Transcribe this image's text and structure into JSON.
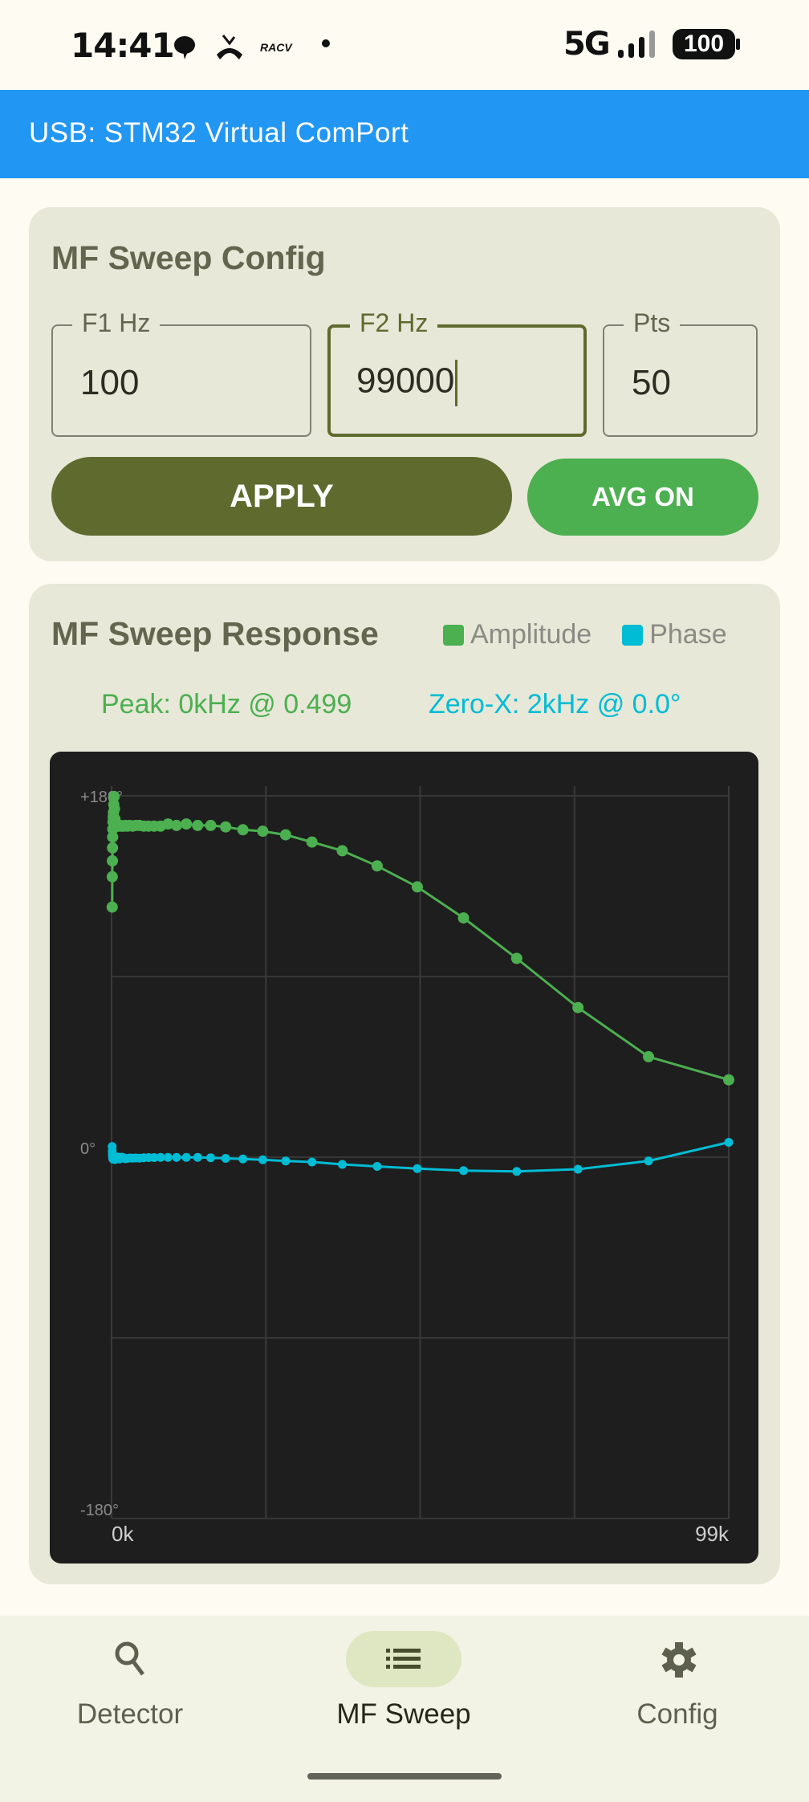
{
  "status_bar": {
    "time": "14:41",
    "network": "5G",
    "battery": "100",
    "notification_icons": [
      "chat-bubble-icon",
      "missed-call-icon",
      "racv-icon",
      "dot-icon"
    ]
  },
  "app_bar": {
    "title": "USB: STM32 Virtual ComPort",
    "color": "#2196f3"
  },
  "config": {
    "title": "MF Sweep Config",
    "fields": [
      {
        "label": "F1 Hz",
        "value": "100"
      },
      {
        "label": "F2 Hz",
        "value": "99000",
        "focused": true
      },
      {
        "label": "Pts",
        "value": "50"
      }
    ],
    "apply_label": "APPLY",
    "avg_label": "AVG ON"
  },
  "response": {
    "title": "MF Sweep Response",
    "legend": [
      {
        "label": "Amplitude",
        "color": "#4caf50"
      },
      {
        "label": "Phase",
        "color": "#00bcd4"
      }
    ],
    "peak_text": "Peak: 0kHz @ 0.499",
    "zero_text": "Zero-X: 2kHz @ 0.0°"
  },
  "chart_data": {
    "type": "line",
    "y_tick_labels": [
      "+180°",
      "0°",
      "-180°"
    ],
    "x_tick_labels": [
      "0k",
      "99k"
    ],
    "xlim": [
      0,
      99000
    ],
    "ylim": [
      -180,
      180
    ],
    "amplitude_full_scale": 0.5,
    "grid": true,
    "x": [
      100,
      115,
      133,
      153,
      176,
      202,
      233,
      268,
      308,
      355,
      409,
      471,
      542,
      624,
      718,
      827,
      951,
      1095,
      1261,
      1452,
      1671,
      1924,
      2215,
      2549,
      2935,
      3379,
      3890,
      4478,
      5155,
      5934,
      6831,
      7864,
      9053,
      10422,
      11997,
      13811,
      15899,
      18303,
      21071,
      24257,
      27924,
      32146,
      37006,
      42601,
      49042,
      56457,
      64993,
      74820,
      86133,
      99000
    ],
    "series": [
      {
        "name": "Amplitude",
        "color": "#4caf50",
        "values": [
          0.346,
          0.388,
          0.41,
          0.428,
          0.443,
          0.454,
          0.464,
          0.471,
          0.477,
          0.488,
          0.499,
          0.482,
          0.468,
          0.462,
          0.459,
          0.458,
          0.458,
          0.459,
          0.458,
          0.459,
          0.458,
          0.458,
          0.459,
          0.458,
          0.459,
          0.458,
          0.459,
          0.459,
          0.458,
          0.458,
          0.458,
          0.458,
          0.461,
          0.459,
          0.461,
          0.459,
          0.459,
          0.457,
          0.453,
          0.451,
          0.446,
          0.436,
          0.424,
          0.403,
          0.374,
          0.331,
          0.275,
          0.207,
          0.139,
          0.107
        ]
      },
      {
        "name": "Phase",
        "color": "#00bcd4",
        "values": [
          5.3,
          3.0,
          1.5,
          0.5,
          -0.3,
          -0.8,
          -1.0,
          -0.6,
          -0.2,
          0.2,
          0.0,
          -0.5,
          -1.2,
          -0.9,
          -0.4,
          -0.2,
          0.1,
          -0.6,
          -0.9,
          -0.5,
          0.0,
          -0.3,
          -0.8,
          -0.6,
          -0.4,
          -0.5,
          -0.4,
          -0.5,
          -0.3,
          -0.2,
          -0.2,
          -0.1,
          -0.1,
          -0.1,
          -0.1,
          -0.1,
          -0.3,
          -0.6,
          -0.9,
          -1.3,
          -1.9,
          -2.4,
          -3.6,
          -4.6,
          -5.7,
          -6.7,
          -7.1,
          -6.0,
          -1.9,
          7.4
        ]
      }
    ]
  },
  "bottom_nav": {
    "items": [
      {
        "label": "Detector",
        "icon": "search-icon"
      },
      {
        "label": "MF Sweep",
        "icon": "list-icon",
        "active": true
      },
      {
        "label": "Config",
        "icon": "gear-icon"
      }
    ]
  }
}
